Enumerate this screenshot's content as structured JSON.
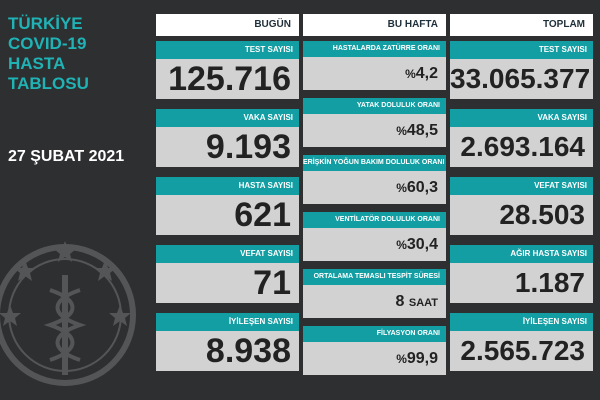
{
  "title": {
    "line1": "TÜRKİYE",
    "line2": "COVID-19",
    "line3": "HASTA",
    "line4": "TABLOSU"
  },
  "date": "27 ŞUBAT 2021",
  "columns": {
    "today": {
      "header": "BUGÜN",
      "cards": [
        {
          "label": "TEST SAYISI",
          "value": "125.716"
        },
        {
          "label": "VAKA SAYISI",
          "value": "9.193"
        },
        {
          "label": "HASTA SAYISI",
          "value": "621"
        },
        {
          "label": "VEFAT SAYISI",
          "value": "71"
        },
        {
          "label": "İYİLEŞEN SAYISI",
          "value": "8.938"
        }
      ]
    },
    "week": {
      "header": "BU HAFTA",
      "cards": [
        {
          "label": "HASTALARDA ZATÜRRE ORANI",
          "prefix": "%",
          "value": "4,2"
        },
        {
          "label": "YATAK DOLULUK ORANI",
          "prefix": "%",
          "value": "48,5"
        },
        {
          "label": "ERİŞKİN YOĞUN BAKIM DOLULUK ORANI",
          "prefix": "%",
          "value": "60,3"
        },
        {
          "label": "VENTİLATÖR DOLULUK ORANI",
          "prefix": "%",
          "value": "30,4"
        },
        {
          "label": "ORTALAMA TEMASLI TESPİT SÜRESİ",
          "value": "8",
          "unit": "SAAT"
        },
        {
          "label": "FİLYASYON ORANI",
          "prefix": "%",
          "value": "99,9"
        }
      ]
    },
    "total": {
      "header": "TOPLAM",
      "cards": [
        {
          "label": "TEST SAYISI",
          "value": "33.065.377"
        },
        {
          "label": "VAKA SAYISI",
          "value": "2.693.164"
        },
        {
          "label": "VEFAT SAYISI",
          "value": "28.503"
        },
        {
          "label": "AĞIR HASTA SAYISI",
          "value": "1.187"
        },
        {
          "label": "İYİLEŞEN SAYISI",
          "value": "2.565.723"
        }
      ]
    }
  },
  "colors": {
    "background": "#2e2f31",
    "accent": "#139ea3",
    "title": "#1fb3b6",
    "value_bg": "#d2d2d2",
    "header_bg": "#ffffff"
  },
  "icons": {
    "emblem": "ministry-of-health-emblem-icon"
  }
}
